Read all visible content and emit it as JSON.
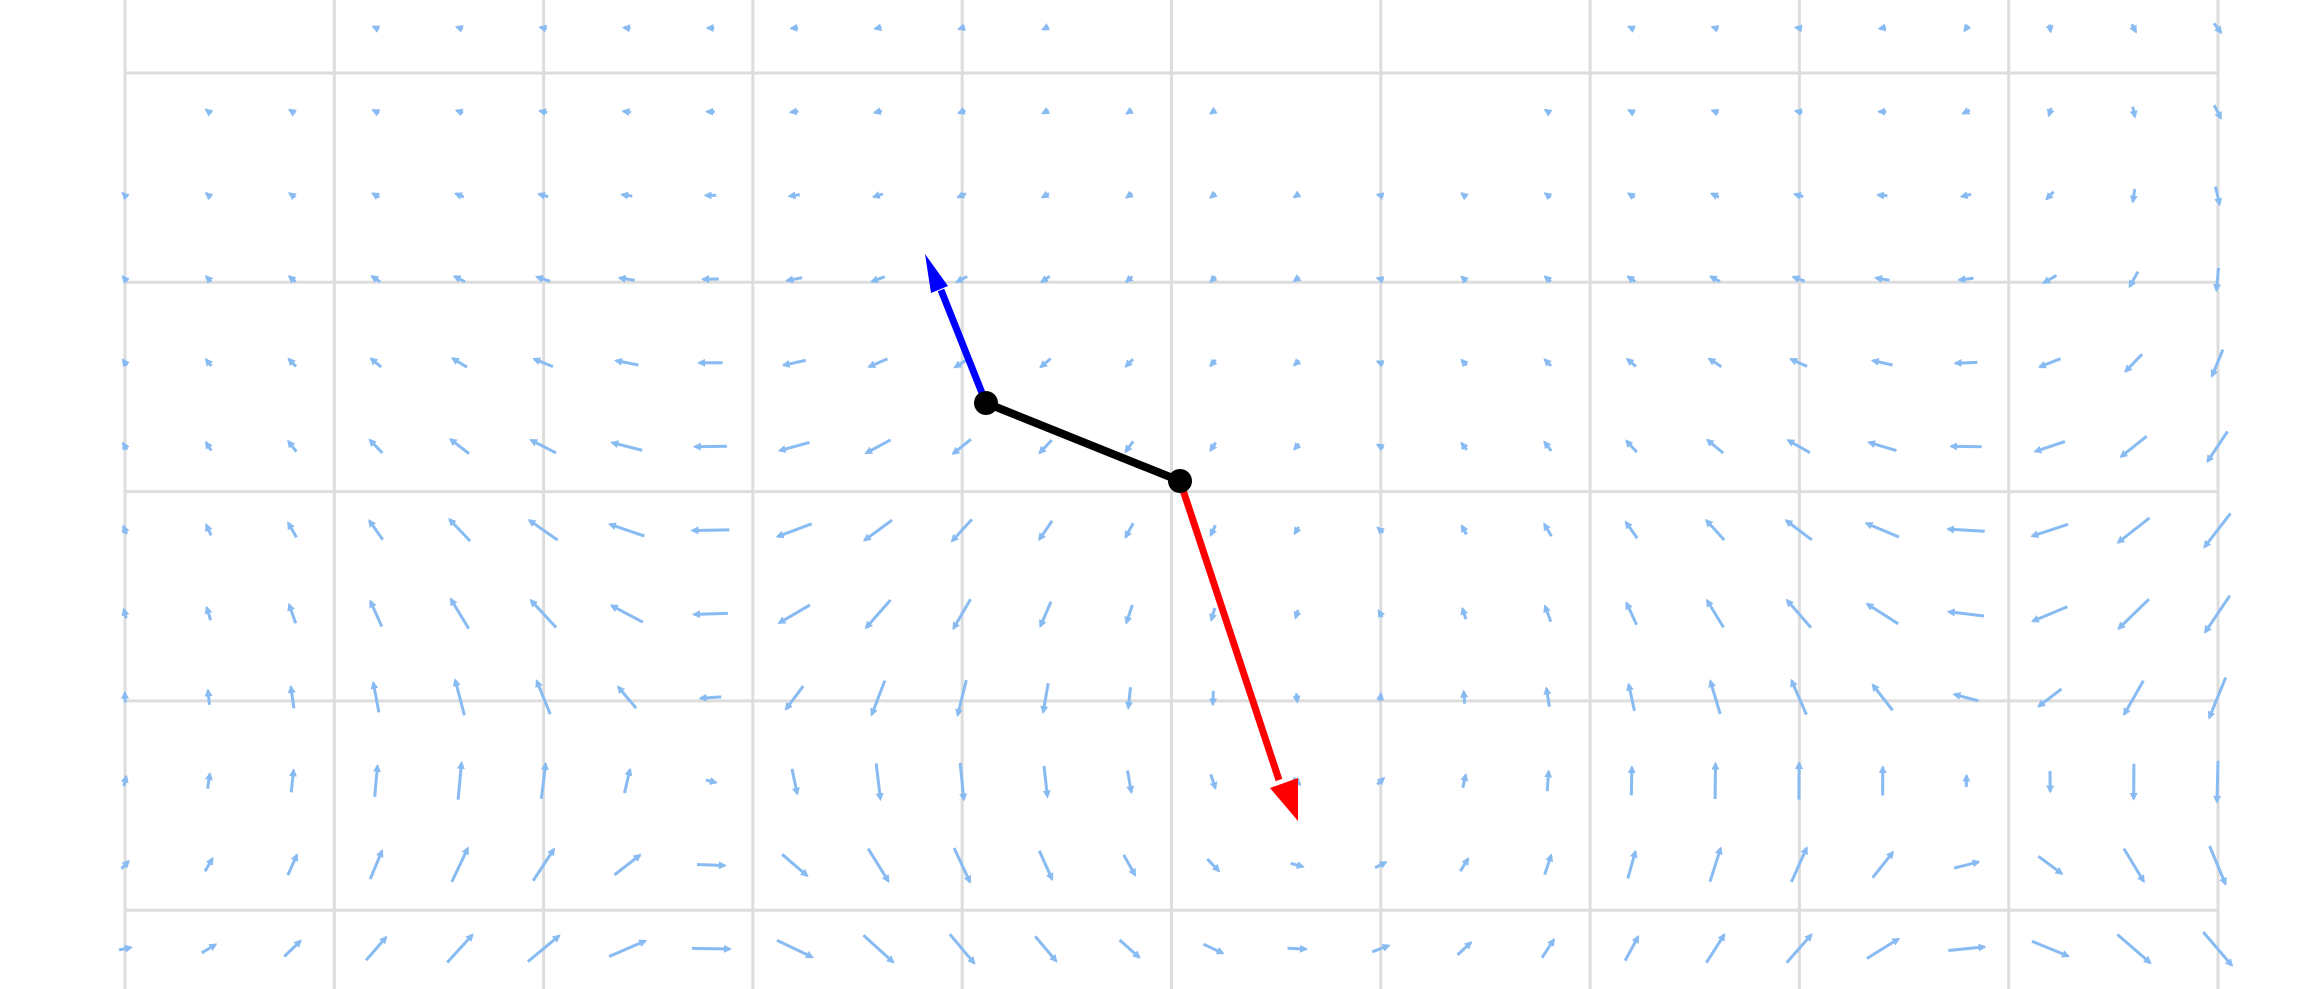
{
  "colors": {
    "background": "#ffffff",
    "grid": "#dddddd",
    "field_arrow": "#88bbf2",
    "rod": "#000000",
    "joint": "#000000",
    "vector_blue": "#0000ff",
    "vector_red": "#ff0000"
  },
  "field": {
    "cols": 26,
    "rows": 12,
    "vortices": [
      {
        "x": 2.78,
        "y": 3.52,
        "s": -1
      },
      {
        "x": 8.92,
        "y": 3.6,
        "s": -1
      },
      {
        "x": 5.36,
        "y": 6.6,
        "s": 1
      },
      {
        "x": 0.78,
        "y": 6.92,
        "s": 1
      },
      {
        "x": 11.2,
        "y": 6.4,
        "s": 1
      },
      {
        "x": 12.0,
        "y": 1.7,
        "s": 1
      },
      {
        "x": 15.2,
        "y": 0.5,
        "s": 1
      }
    ]
  },
  "vectors": {
    "blue": {
      "label": "",
      "direction": [
        -0.41,
        1.13
      ]
    },
    "red": {
      "label": "",
      "direction": [
        0.55,
        -1.63
      ]
    }
  }
}
